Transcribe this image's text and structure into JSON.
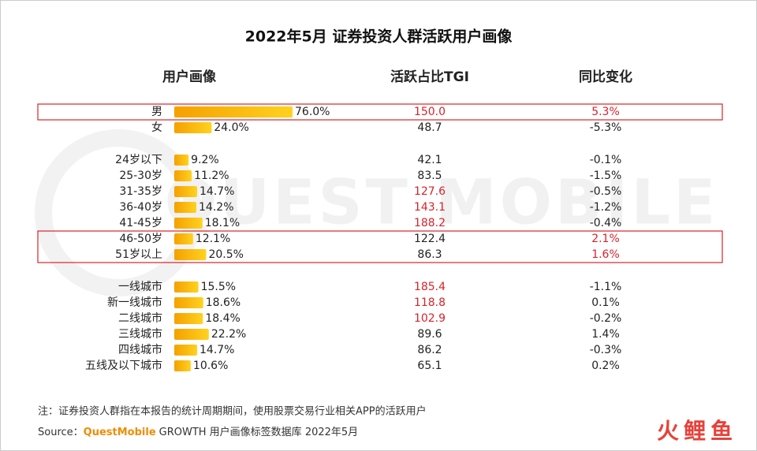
{
  "chart_data": {
    "type": "bar",
    "title": "2022年5月 证券投资人群活跃用户画像",
    "columns": [
      "用户画像",
      "活跃占比TGI",
      "同比变化"
    ],
    "watermark": "QUEST MOBILE",
    "groups": [
      {
        "rows": [
          {
            "label": "男",
            "value": 76.0,
            "value_label": "76.0%",
            "tgi": "150.0",
            "yoy": "5.3%",
            "tgi_red": true,
            "yoy_red": true,
            "boxed": true
          },
          {
            "label": "女",
            "value": 24.0,
            "value_label": "24.0%",
            "tgi": "48.7",
            "yoy": "-5.3%",
            "tgi_red": false,
            "yoy_red": false,
            "boxed": false
          }
        ]
      },
      {
        "rows": [
          {
            "label": "24岁以下",
            "value": 9.2,
            "value_label": "9.2%",
            "tgi": "42.1",
            "yoy": "-0.1%",
            "tgi_red": false,
            "yoy_red": false,
            "boxed": false
          },
          {
            "label": "25-30岁",
            "value": 11.2,
            "value_label": "11.2%",
            "tgi": "83.5",
            "yoy": "-1.5%",
            "tgi_red": false,
            "yoy_red": false,
            "boxed": false
          },
          {
            "label": "31-35岁",
            "value": 14.7,
            "value_label": "14.7%",
            "tgi": "127.6",
            "yoy": "-0.5%",
            "tgi_red": true,
            "yoy_red": false,
            "boxed": false
          },
          {
            "label": "36-40岁",
            "value": 14.2,
            "value_label": "14.2%",
            "tgi": "143.1",
            "yoy": "-1.2%",
            "tgi_red": true,
            "yoy_red": false,
            "boxed": false
          },
          {
            "label": "41-45岁",
            "value": 18.1,
            "value_label": "18.1%",
            "tgi": "188.2",
            "yoy": "-0.4%",
            "tgi_red": true,
            "yoy_red": false,
            "boxed": false
          },
          {
            "label": "46-50岁",
            "value": 12.1,
            "value_label": "12.1%",
            "tgi": "122.4",
            "yoy": "2.1%",
            "tgi_red": false,
            "yoy_red": true,
            "boxed": true
          },
          {
            "label": "51岁以上",
            "value": 20.5,
            "value_label": "20.5%",
            "tgi": "86.3",
            "yoy": "1.6%",
            "tgi_red": false,
            "yoy_red": true,
            "boxed": true
          }
        ]
      },
      {
        "rows": [
          {
            "label": "一线城市",
            "value": 15.5,
            "value_label": "15.5%",
            "tgi": "185.4",
            "yoy": "-1.1%",
            "tgi_red": true,
            "yoy_red": false,
            "boxed": false
          },
          {
            "label": "新一线城市",
            "value": 18.6,
            "value_label": "18.6%",
            "tgi": "118.8",
            "yoy": "0.1%",
            "tgi_red": true,
            "yoy_red": false,
            "boxed": false
          },
          {
            "label": "二线城市",
            "value": 18.4,
            "value_label": "18.4%",
            "tgi": "102.9",
            "yoy": "-0.2%",
            "tgi_red": true,
            "yoy_red": false,
            "boxed": false
          },
          {
            "label": "三线城市",
            "value": 22.2,
            "value_label": "22.2%",
            "tgi": "89.6",
            "yoy": "1.4%",
            "tgi_red": false,
            "yoy_red": false,
            "boxed": false
          },
          {
            "label": "四线城市",
            "value": 14.7,
            "value_label": "14.7%",
            "tgi": "86.2",
            "yoy": "-0.3%",
            "tgi_red": false,
            "yoy_red": false,
            "boxed": false
          },
          {
            "label": "五线及以下城市",
            "value": 10.6,
            "value_label": "10.6%",
            "tgi": "65.1",
            "yoy": "0.2%",
            "tgi_red": false,
            "yoy_red": false,
            "boxed": false
          }
        ]
      }
    ],
    "note": "注：证券投资人群指在本报告的统计周期期间，使用股票交易行业相关APP的活跃用户",
    "source_prefix": "Source：",
    "source_brand": "QuestMobile",
    "source_rest": "GROWTH 用户画像标签数据库 2022年5月",
    "logo": "火鲤鱼",
    "highlight_color": "#d9232a"
  }
}
